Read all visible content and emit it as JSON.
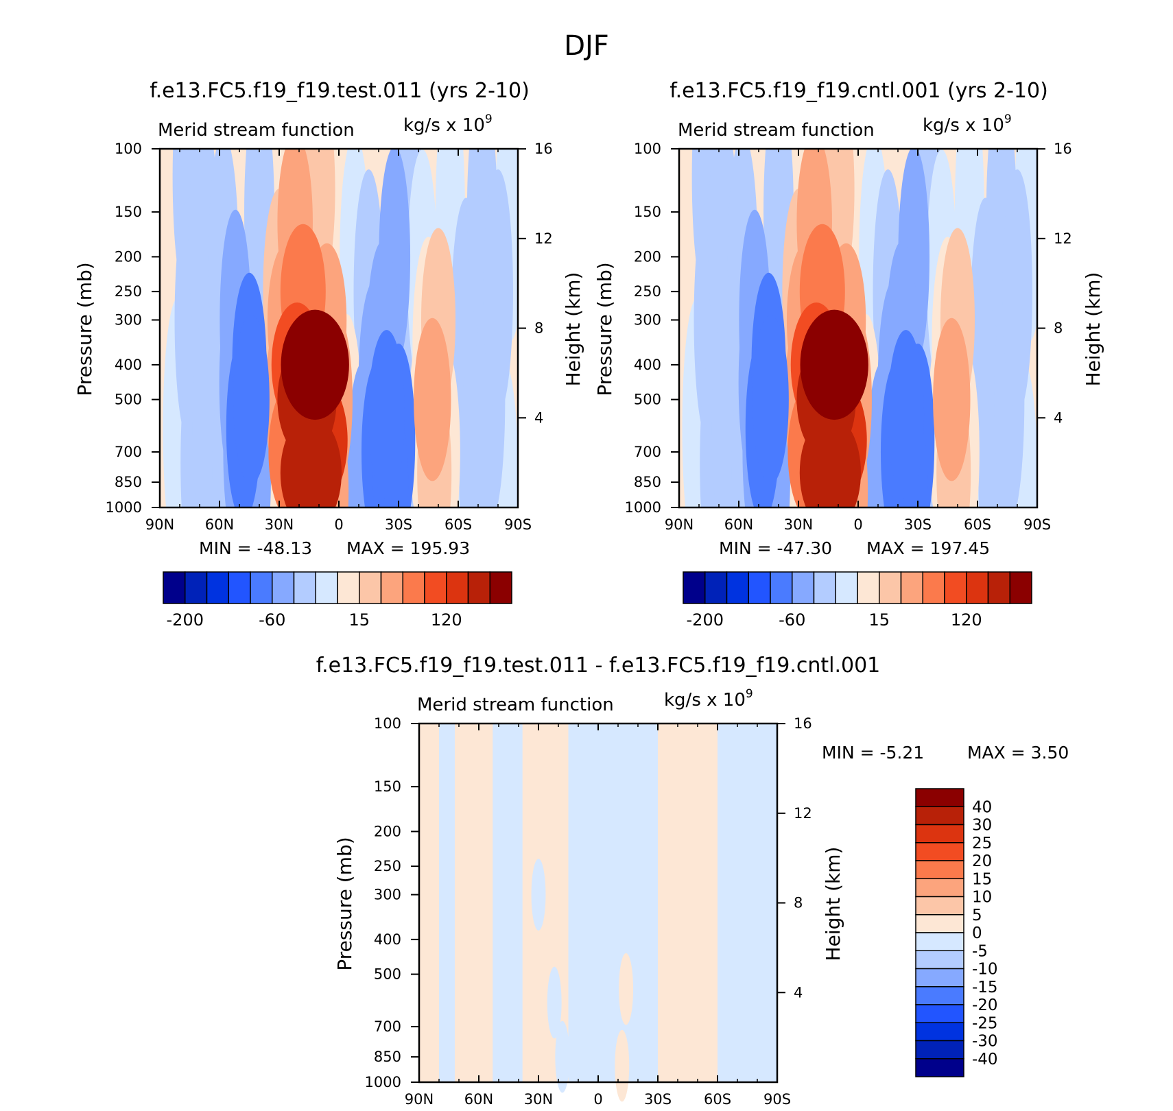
{
  "figure": {
    "title": "DJF"
  },
  "chart_data": [
    {
      "type": "heatmap",
      "subtype": "filled-contour",
      "title": "f.e13.FC5.f19_f19.test.011 (yrs 2-10)",
      "subtitle": "Merid stream function",
      "units_label": "kg/s x 10",
      "units_exponent": "9",
      "ylabel": "Pressure (mb)",
      "y2label": "Height (km)",
      "x": [
        "90N",
        "60N",
        "30N",
        "0",
        "30S",
        "60S",
        "90S"
      ],
      "y": [
        "100",
        "150",
        "200",
        "250",
        "300",
        "400",
        "500",
        "700",
        "850",
        "1000"
      ],
      "y2": [
        "16",
        "12",
        "8",
        "4"
      ],
      "min_label": "MIN = -48.13",
      "max_label": "MAX = 195.93",
      "colorbar_orientation": "horizontal",
      "colorbar_labels": [
        "-200",
        "-60",
        "15",
        "120"
      ],
      "cells": [
        {
          "lat": 81,
          "p": 600,
          "v": 1
        },
        {
          "lat": 76,
          "p": 120,
          "v": -4
        },
        {
          "lat": 75,
          "p": 300,
          "v": -4
        },
        {
          "lat": 72,
          "p": 750,
          "v": -4
        },
        {
          "lat": 68,
          "p": 180,
          "v": -4
        },
        {
          "lat": 66,
          "p": 600,
          "v": -4
        },
        {
          "lat": 58,
          "p": 200,
          "v": -4
        },
        {
          "lat": 56,
          "p": 800,
          "v": -4
        },
        {
          "lat": 52,
          "p": 300,
          "v": -10
        },
        {
          "lat": 52,
          "p": 450,
          "v": -15
        },
        {
          "lat": 50,
          "p": 700,
          "v": -15
        },
        {
          "lat": 48,
          "p": 600,
          "v": -25
        },
        {
          "lat": 45,
          "p": 400,
          "v": -25
        },
        {
          "lat": 44,
          "p": 500,
          "v": -35
        },
        {
          "lat": 42,
          "p": 800,
          "v": -10
        },
        {
          "lat": 40,
          "p": 150,
          "v": -4
        },
        {
          "lat": 35,
          "p": 400,
          "v": 1
        },
        {
          "lat": 32,
          "p": 800,
          "v": 8
        },
        {
          "lat": 30,
          "p": 250,
          "v": 15
        },
        {
          "lat": 28,
          "p": 500,
          "v": 30
        },
        {
          "lat": 26,
          "p": 300,
          "v": 50
        },
        {
          "lat": 24,
          "p": 700,
          "v": 80
        },
        {
          "lat": 22,
          "p": 160,
          "v": 30
        },
        {
          "lat": 21,
          "p": 400,
          "v": 110
        },
        {
          "lat": 18,
          "p": 250,
          "v": 80
        },
        {
          "lat": 16,
          "p": 500,
          "v": 150
        },
        {
          "lat": 14,
          "p": 800,
          "v": 160
        },
        {
          "lat": 12,
          "p": 400,
          "v": 195
        },
        {
          "lat": 10,
          "p": 130,
          "v": 15
        },
        {
          "lat": 9,
          "p": 650,
          "v": 120
        },
        {
          "lat": 6,
          "p": 300,
          "v": 50
        },
        {
          "lat": 4,
          "p": 900,
          "v": 30
        },
        {
          "lat": 2,
          "p": 500,
          "v": 30
        },
        {
          "lat": -4,
          "p": 600,
          "v": 8
        },
        {
          "lat": -8,
          "p": 200,
          "v": 4
        },
        {
          "lat": -12,
          "p": 800,
          "v": -10
        },
        {
          "lat": -15,
          "p": 250,
          "v": -4
        },
        {
          "lat": -18,
          "p": 450,
          "v": -15
        },
        {
          "lat": -20,
          "p": 700,
          "v": -25
        },
        {
          "lat": -22,
          "p": 350,
          "v": -15
        },
        {
          "lat": -24,
          "p": 550,
          "v": -35
        },
        {
          "lat": -26,
          "p": 850,
          "v": -30
        },
        {
          "lat": -28,
          "p": 200,
          "v": -10
        },
        {
          "lat": -30,
          "p": 650,
          "v": -20
        },
        {
          "lat": -34,
          "p": 130,
          "v": -4
        },
        {
          "lat": -36,
          "p": 800,
          "v": -4
        },
        {
          "lat": -38,
          "p": 400,
          "v": -4
        },
        {
          "lat": -42,
          "p": 220,
          "v": 4
        },
        {
          "lat": -43,
          "p": 600,
          "v": 12
        },
        {
          "lat": -45,
          "p": 350,
          "v": 12
        },
        {
          "lat": -47,
          "p": 500,
          "v": 40
        },
        {
          "lat": -48,
          "p": 800,
          "v": 25
        },
        {
          "lat": -50,
          "p": 300,
          "v": 25
        },
        {
          "lat": -53,
          "p": 700,
          "v": 12
        },
        {
          "lat": -56,
          "p": 150,
          "v": 1
        },
        {
          "lat": -59,
          "p": 600,
          "v": 1
        },
        {
          "lat": -64,
          "p": 300,
          "v": -4
        },
        {
          "lat": -68,
          "p": 800,
          "v": -4
        },
        {
          "lat": -72,
          "p": 150,
          "v": -4
        },
        {
          "lat": -76,
          "p": 500,
          "v": -4
        },
        {
          "lat": -80,
          "p": 250,
          "v": -4
        },
        {
          "lat": -83,
          "p": 900,
          "v": 1
        },
        {
          "lat": -86,
          "p": 150,
          "v": 1
        }
      ]
    },
    {
      "type": "heatmap",
      "subtype": "filled-contour",
      "title": "f.e13.FC5.f19_f19.cntl.001 (yrs 2-10)",
      "subtitle": "Merid stream function",
      "units_label": "kg/s x 10",
      "units_exponent": "9",
      "ylabel": "Pressure (mb)",
      "y2label": "Height (km)",
      "x": [
        "90N",
        "60N",
        "30N",
        "0",
        "30S",
        "60S",
        "90S"
      ],
      "y": [
        "100",
        "150",
        "200",
        "250",
        "300",
        "400",
        "500",
        "700",
        "850",
        "1000"
      ],
      "y2": [
        "16",
        "12",
        "8",
        "4"
      ],
      "min_label": "MIN = -47.30",
      "max_label": "MAX = 197.45",
      "colorbar_orientation": "horizontal",
      "colorbar_labels": [
        "-200",
        "-60",
        "15",
        "120"
      ],
      "cells": [
        {
          "lat": 81,
          "p": 600,
          "v": 1
        },
        {
          "lat": 76,
          "p": 120,
          "v": -4
        },
        {
          "lat": 75,
          "p": 300,
          "v": -4
        },
        {
          "lat": 72,
          "p": 750,
          "v": -4
        },
        {
          "lat": 68,
          "p": 180,
          "v": -4
        },
        {
          "lat": 66,
          "p": 600,
          "v": -4
        },
        {
          "lat": 58,
          "p": 200,
          "v": -4
        },
        {
          "lat": 56,
          "p": 800,
          "v": -4
        },
        {
          "lat": 52,
          "p": 300,
          "v": -10
        },
        {
          "lat": 52,
          "p": 450,
          "v": -15
        },
        {
          "lat": 50,
          "p": 700,
          "v": -15
        },
        {
          "lat": 48,
          "p": 600,
          "v": -25
        },
        {
          "lat": 45,
          "p": 400,
          "v": -25
        },
        {
          "lat": 44,
          "p": 500,
          "v": -35
        },
        {
          "lat": 42,
          "p": 800,
          "v": -10
        },
        {
          "lat": 40,
          "p": 150,
          "v": -4
        },
        {
          "lat": 35,
          "p": 400,
          "v": 1
        },
        {
          "lat": 32,
          "p": 800,
          "v": 8
        },
        {
          "lat": 30,
          "p": 250,
          "v": 15
        },
        {
          "lat": 28,
          "p": 500,
          "v": 30
        },
        {
          "lat": 26,
          "p": 300,
          "v": 50
        },
        {
          "lat": 24,
          "p": 700,
          "v": 80
        },
        {
          "lat": 22,
          "p": 160,
          "v": 30
        },
        {
          "lat": 21,
          "p": 400,
          "v": 110
        },
        {
          "lat": 18,
          "p": 250,
          "v": 80
        },
        {
          "lat": 16,
          "p": 500,
          "v": 150
        },
        {
          "lat": 14,
          "p": 800,
          "v": 160
        },
        {
          "lat": 12,
          "p": 400,
          "v": 195
        },
        {
          "lat": 10,
          "p": 130,
          "v": 15
        },
        {
          "lat": 9,
          "p": 650,
          "v": 120
        },
        {
          "lat": 6,
          "p": 300,
          "v": 50
        },
        {
          "lat": 4,
          "p": 900,
          "v": 30
        },
        {
          "lat": 2,
          "p": 500,
          "v": 30
        },
        {
          "lat": -4,
          "p": 600,
          "v": 8
        },
        {
          "lat": -8,
          "p": 200,
          "v": 4
        },
        {
          "lat": -12,
          "p": 800,
          "v": -10
        },
        {
          "lat": -15,
          "p": 250,
          "v": -4
        },
        {
          "lat": -18,
          "p": 450,
          "v": -15
        },
        {
          "lat": -20,
          "p": 700,
          "v": -25
        },
        {
          "lat": -22,
          "p": 350,
          "v": -15
        },
        {
          "lat": -24,
          "p": 550,
          "v": -35
        },
        {
          "lat": -26,
          "p": 850,
          "v": -30
        },
        {
          "lat": -28,
          "p": 200,
          "v": -10
        },
        {
          "lat": -30,
          "p": 650,
          "v": -20
        },
        {
          "lat": -34,
          "p": 130,
          "v": -4
        },
        {
          "lat": -36,
          "p": 800,
          "v": -4
        },
        {
          "lat": -38,
          "p": 400,
          "v": -4
        },
        {
          "lat": -42,
          "p": 220,
          "v": 4
        },
        {
          "lat": -43,
          "p": 600,
          "v": 12
        },
        {
          "lat": -45,
          "p": 350,
          "v": 12
        },
        {
          "lat": -47,
          "p": 500,
          "v": 40
        },
        {
          "lat": -48,
          "p": 800,
          "v": 25
        },
        {
          "lat": -50,
          "p": 300,
          "v": 25
        },
        {
          "lat": -53,
          "p": 700,
          "v": 12
        },
        {
          "lat": -56,
          "p": 150,
          "v": 1
        },
        {
          "lat": -59,
          "p": 600,
          "v": 1
        },
        {
          "lat": -64,
          "p": 300,
          "v": -4
        },
        {
          "lat": -68,
          "p": 800,
          "v": -4
        },
        {
          "lat": -72,
          "p": 150,
          "v": -4
        },
        {
          "lat": -76,
          "p": 500,
          "v": -4
        },
        {
          "lat": -80,
          "p": 250,
          "v": -4
        },
        {
          "lat": -83,
          "p": 900,
          "v": 1
        },
        {
          "lat": -86,
          "p": 150,
          "v": 1
        }
      ]
    },
    {
      "type": "heatmap",
      "subtype": "filled-contour",
      "title": "f.e13.FC5.f19_f19.test.011 - f.e13.FC5.f19_f19.cntl.001",
      "subtitle": "Merid stream function",
      "units_label": "kg/s x 10",
      "units_exponent": "9",
      "ylabel": "Pressure (mb)",
      "y2label": "Height (km)",
      "x": [
        "90N",
        "60N",
        "30N",
        "0",
        "30S",
        "60S",
        "90S"
      ],
      "y": [
        "100",
        "150",
        "200",
        "250",
        "300",
        "400",
        "500",
        "700",
        "850",
        "1000"
      ],
      "y2": [
        "16",
        "12",
        "8",
        "4"
      ],
      "min_label": "MIN = -5.21",
      "max_label": "MAX = 3.50",
      "colorbar_orientation": "vertical",
      "colorbar_labels": [
        "40",
        "30",
        "25",
        "20",
        "15",
        "10",
        "5",
        "0",
        "-5",
        "-10",
        "-15",
        "-20",
        "-25",
        "-30",
        "-40"
      ],
      "bands": [
        {
          "from": 90,
          "to": 80,
          "v": 1
        },
        {
          "from": 80,
          "to": 72,
          "v": -1
        },
        {
          "from": 72,
          "to": 53,
          "v": 1
        },
        {
          "from": 53,
          "to": 38,
          "v": -1
        },
        {
          "from": 38,
          "to": 15,
          "v": 1
        },
        {
          "from": 15,
          "to": -30,
          "v": -1
        },
        {
          "from": -30,
          "to": -60,
          "v": 1
        },
        {
          "from": -60,
          "to": -90,
          "v": -1
        }
      ],
      "overlays": [
        {
          "lat": -12,
          "p": 900,
          "v": 1
        },
        {
          "lat": -14,
          "p": 550,
          "v": 1
        },
        {
          "lat": 22,
          "p": 600,
          "v": -1
        },
        {
          "lat": 18,
          "p": 850,
          "v": -1
        },
        {
          "lat": 30,
          "p": 300,
          "v": -1
        }
      ]
    }
  ],
  "colorbar_main": {
    "colors": [
      "#00008b",
      "#0022b8",
      "#0033e0",
      "#2255ff",
      "#4a7bff",
      "#86a9ff",
      "#b3ccff",
      "#d6e8ff",
      "#fde7d5",
      "#fcc6a8",
      "#fca47d",
      "#fb7a4c",
      "#f24c22",
      "#dc3410",
      "#b82108",
      "#8b0000"
    ]
  },
  "colorbar_diff": {
    "colors": [
      "#8b0000",
      "#b82108",
      "#dc3410",
      "#f24c22",
      "#fb7a4c",
      "#fca47d",
      "#fcc6a8",
      "#fde7d5",
      "#d6e8ff",
      "#b3ccff",
      "#86a9ff",
      "#4a7bff",
      "#2255ff",
      "#0033e0",
      "#0022b8",
      "#00008b"
    ]
  }
}
